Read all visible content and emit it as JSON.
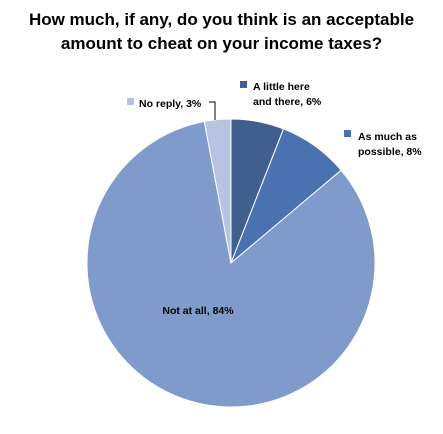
{
  "chart_data": {
    "type": "pie",
    "title_lines": [
      "How much, if any, do you think is an acceptable",
      "amount to cheat on your income taxes?"
    ],
    "slices": [
      {
        "name": "A little here and there",
        "value": 6,
        "label_lines": [
          "A little here",
          "and there, 6%"
        ],
        "color": "#3f5f8f"
      },
      {
        "name": "As much as possible",
        "value": 8,
        "label_lines": [
          "As much as",
          "possible, 8%"
        ],
        "color": "#4a72b0"
      },
      {
        "name": "Not at all",
        "value": 84,
        "label_lines": [
          "Not at all, 84%"
        ],
        "color": "#7f9bcb"
      },
      {
        "name": "No reply",
        "value": 3,
        "label_lines": [
          "No reply, 3%"
        ],
        "color": "#b6c4e2"
      }
    ],
    "start_angle_deg": 0,
    "direction": "clockwise"
  }
}
